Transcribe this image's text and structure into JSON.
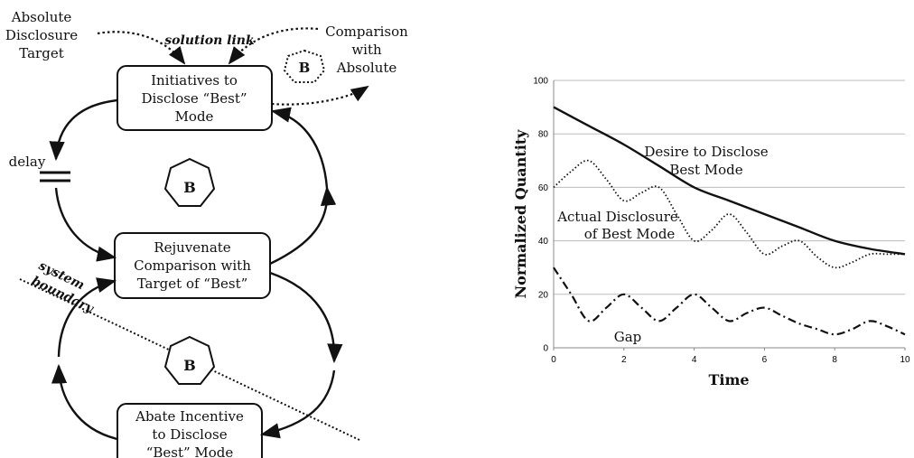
{
  "diagram": {
    "nodes": {
      "initiatives": [
        "Initiatives to",
        "Disclose “Best”",
        "Mode"
      ],
      "rejuvenate": [
        "Rejuvenate",
        "Comparison with",
        "Target of “Best”"
      ],
      "abate": [
        "Abate Incentive",
        "to Disclose",
        "“Best” Mode"
      ]
    },
    "labels": {
      "absolute_target": [
        "Absolute",
        "Disclosure",
        "Target"
      ],
      "comparison": [
        "Comparison",
        "with",
        "Absolute"
      ],
      "solution_link": "solution link",
      "delay": "delay",
      "system_boundary": [
        "system",
        "boundary"
      ]
    },
    "loop_markers": {
      "small": "B",
      "top": "B",
      "bottom": "B"
    }
  },
  "chart_data": {
    "type": "line",
    "xlabel": "Time",
    "ylabel": "Normalized Quantity",
    "xlim": [
      0,
      10
    ],
    "ylim": [
      0,
      100
    ],
    "xticks": [
      "0",
      "2",
      "4",
      "6",
      "8",
      "10"
    ],
    "yticks": [
      "0",
      "20",
      "40",
      "60",
      "80",
      "100"
    ],
    "grid": "horizontal",
    "series": [
      {
        "name": "Desire to Disclose Best Mode",
        "style": "solid",
        "x": [
          0,
          1,
          2,
          3,
          4,
          5,
          6,
          7,
          8,
          9,
          10
        ],
        "values": [
          90,
          83,
          76,
          68,
          60,
          55,
          50,
          45,
          40,
          37,
          35
        ]
      },
      {
        "name": "Actual Disclosure of Best Mode",
        "style": "dotted",
        "x": [
          0,
          0.5,
          1,
          1.5,
          2,
          2.5,
          3,
          3.5,
          4,
          4.5,
          5,
          5.5,
          6,
          6.5,
          7,
          7.5,
          8,
          8.5,
          9,
          9.5,
          10
        ],
        "values": [
          60,
          66,
          70,
          63,
          55,
          58,
          60,
          50,
          40,
          44,
          50,
          43,
          35,
          38,
          40,
          34,
          30,
          32,
          35,
          35,
          35
        ]
      },
      {
        "name": "Gap",
        "style": "dash-dot",
        "x": [
          0,
          0.5,
          1,
          1.5,
          2,
          2.5,
          3,
          3.5,
          4,
          4.5,
          5,
          5.5,
          6,
          6.5,
          7,
          7.5,
          8,
          8.5,
          9,
          9.5,
          10
        ],
        "values": [
          30,
          20,
          10,
          15,
          20,
          15,
          10,
          15,
          20,
          15,
          10,
          13,
          15,
          12,
          9,
          7,
          5,
          7,
          10,
          8,
          5
        ]
      }
    ],
    "annotations": {
      "desire": [
        "Desire to Disclose",
        "Best Mode"
      ],
      "actual": [
        "Actual Disclosure",
        "of Best Mode"
      ],
      "gap": "Gap"
    }
  }
}
